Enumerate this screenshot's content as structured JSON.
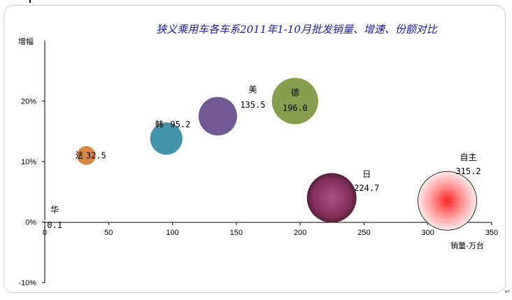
{
  "chart_data": {
    "type": "bubble",
    "title": "狭义乘用车各车系2011年1-10月批发销量、增速、份额对比",
    "xlabel": "销量-万台",
    "ylabel": "增幅",
    "xlim": [
      0,
      350
    ],
    "ylim": [
      -10,
      30
    ],
    "x_ticks": [
      "0",
      "50",
      "100",
      "150",
      "200",
      "250",
      "300",
      "350"
    ],
    "y_ticks": [
      "-10%",
      "0%",
      "10%",
      "20%"
    ],
    "series": [
      {
        "name": "华",
        "value_label": "0.1",
        "x": 0.1,
        "y": 0.2,
        "size": 0.1,
        "color": "#ffffff",
        "label_color": "#000000"
      },
      {
        "name": "法",
        "value_label": "32.5",
        "x": 32.5,
        "y": 11.0,
        "size": 32.5,
        "color": "#d9823b",
        "label_color": "#000000"
      },
      {
        "name": "韩",
        "value_label": "95.2",
        "x": 95.2,
        "y": 13.8,
        "size": 95.2,
        "color": "#3a8fa8",
        "label_color": "#000000"
      },
      {
        "name": "美",
        "value_label": "135.5",
        "x": 135.5,
        "y": 17.5,
        "size": 135.5,
        "color": "#6a4f8e",
        "label_color": "#000000"
      },
      {
        "name": "德",
        "value_label": "196.0",
        "x": 196.0,
        "y": 20.0,
        "size": 196.0,
        "color": "#7f9a45",
        "label_color": "#000000"
      },
      {
        "name": "日",
        "value_label": "224.7",
        "x": 224.7,
        "y": 4.0,
        "size": 224.7,
        "color": "#8e2a5c",
        "label_color": "#c00000"
      },
      {
        "name": "自主",
        "value_label": "315.2",
        "x": 315.2,
        "y": 3.5,
        "size": 315.2,
        "color": "#ff2020",
        "label_color": "#000000"
      }
    ],
    "grid": false,
    "legend": "none"
  },
  "decor": {
    "return_mark": "↵"
  }
}
